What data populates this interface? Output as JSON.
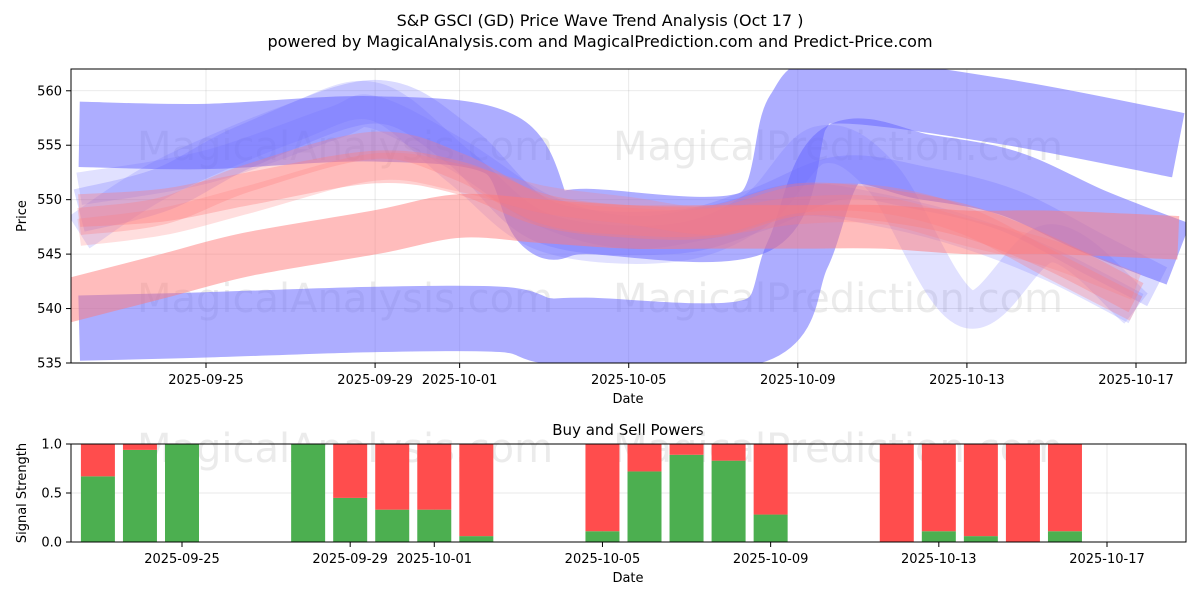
{
  "header": {
    "title_line1": "S&P GSCI (GD) Price Wave Trend Analysis (Oct 17 )",
    "title_line2": "powered by MagicalAnalysis.com and MagicalPrediction.com and Predict-Price.com"
  },
  "watermarks": {
    "left": "MagicalAnalysis.com",
    "right": "MagicalPrediction.com"
  },
  "colors": {
    "buy_band": "#6a6aff",
    "sell_band": "#ff7a7a",
    "buy_bar": "#4caf50",
    "sell_bar": "#ff4d4d"
  },
  "chart_data": [
    {
      "type": "area",
      "title": "",
      "xlabel": "Date",
      "ylabel": "Price",
      "ylim": [
        535,
        562
      ],
      "yticks": [
        535,
        540,
        545,
        550,
        555,
        560
      ],
      "xticks": [
        "2025-09-25",
        "2025-09-29",
        "2025-10-01",
        "2025-10-05",
        "2025-10-09",
        "2025-10-13",
        "2025-10-17"
      ],
      "xtick_days": [
        5,
        9,
        11,
        15,
        19,
        23,
        27
      ],
      "grid": true,
      "x_unit": "days since 2025-09-20",
      "series": [
        {
          "name": "blue-wave-upper",
          "color": "blue",
          "opacity": 0.55,
          "width": 6,
          "x": [
            2,
            5,
            9,
            12,
            13,
            14,
            18,
            19,
            20,
            24,
            28
          ],
          "y": [
            556,
            555.8,
            556.5,
            555,
            548,
            548,
            548,
            558,
            560,
            558,
            555
          ]
        },
        {
          "name": "blue-wave-lower",
          "color": "blue",
          "opacity": 0.55,
          "width": 6,
          "x": [
            2,
            5,
            9,
            12,
            13,
            14,
            18,
            19,
            20,
            22,
            24,
            26,
            28
          ],
          "y": [
            538.2,
            538.5,
            539,
            539,
            538,
            538,
            538,
            545,
            554,
            553,
            551.5,
            548,
            545
          ]
        },
        {
          "name": "blue-wave-3",
          "color": "blue",
          "opacity": 0.25,
          "width": 4,
          "x": [
            2,
            4,
            6,
            9,
            11,
            13,
            16,
            18,
            20,
            22,
            24,
            26,
            27.5
          ],
          "y": [
            549,
            551,
            555,
            559,
            555,
            548,
            547,
            549,
            552,
            551,
            549,
            545,
            542
          ]
        },
        {
          "name": "blue-wave-4",
          "color": "blue",
          "opacity": 0.2,
          "width": 3.5,
          "x": [
            2,
            4,
            7,
            9,
            11,
            13,
            16,
            18,
            19.5,
            21,
            23,
            25,
            27
          ],
          "y": [
            547,
            552,
            557,
            559,
            553,
            547,
            546,
            549,
            555,
            552,
            540,
            546,
            540
          ]
        },
        {
          "name": "blue-wave-5",
          "color": "blue",
          "opacity": 0.2,
          "width": 3,
          "x": [
            2,
            5,
            8,
            9,
            11,
            13,
            15,
            17,
            19,
            21,
            23,
            25,
            27
          ],
          "y": [
            551,
            553,
            557,
            558,
            554,
            549,
            547,
            548,
            550,
            549,
            547,
            544,
            540
          ]
        },
        {
          "name": "red-wave-lower",
          "color": "red",
          "opacity": 0.5,
          "width": 4,
          "x": [
            1.5,
            4,
            6,
            9,
            11,
            13,
            15,
            17,
            19,
            21,
            23,
            25,
            28
          ],
          "y": [
            540.5,
            543,
            545,
            547,
            548.5,
            548,
            547.5,
            547.5,
            547.5,
            547.5,
            547,
            547,
            546.5
          ]
        },
        {
          "name": "red-wave-2",
          "color": "red",
          "opacity": 0.35,
          "width": 3,
          "x": [
            2,
            4,
            6,
            9,
            11,
            13,
            15,
            17,
            19,
            21,
            23,
            25,
            27
          ],
          "y": [
            549,
            549.5,
            551,
            553,
            552,
            549,
            548,
            548,
            550,
            549.5,
            548,
            545,
            541
          ]
        },
        {
          "name": "red-wave-3",
          "color": "red",
          "opacity": 0.3,
          "width": 2.5,
          "x": [
            2,
            4,
            6,
            9,
            11,
            13,
            15,
            17,
            19,
            21,
            23,
            25,
            27
          ],
          "y": [
            548,
            549,
            552,
            555,
            553,
            549,
            548,
            548,
            550,
            550,
            548,
            544,
            540
          ]
        },
        {
          "name": "red-wave-4",
          "color": "red",
          "opacity": 0.25,
          "width": 2.5,
          "x": [
            2,
            4,
            6,
            9,
            11,
            13,
            15,
            17,
            19,
            21,
            23,
            25,
            27
          ],
          "y": [
            547,
            548,
            550,
            553,
            552,
            550,
            549,
            548,
            549,
            549,
            547,
            545,
            542
          ]
        }
      ]
    },
    {
      "type": "bar",
      "title": "Buy and Sell Powers",
      "xlabel": "Date",
      "ylabel": "Signal Strength",
      "ylim": [
        0,
        1
      ],
      "yticks": [
        0.0,
        0.5,
        1.0
      ],
      "ytick_labels": [
        "0.0",
        "0.5",
        "1.0"
      ],
      "xticks": [
        "2025-09-25",
        "2025-09-29",
        "2025-10-01",
        "2025-10-05",
        "2025-10-09",
        "2025-10-13",
        "2025-10-17"
      ],
      "xtick_days": [
        5,
        9,
        11,
        15,
        19,
        23,
        27
      ],
      "x_unit": "days since 2025-09-20",
      "bars": [
        {
          "day": 3,
          "buy": 0.67,
          "sell": 0.33
        },
        {
          "day": 4,
          "buy": 0.94,
          "sell": 0.06
        },
        {
          "day": 5,
          "buy": 1.0,
          "sell": 0.0
        },
        {
          "day": 8,
          "buy": 1.0,
          "sell": 0.0
        },
        {
          "day": 9,
          "buy": 0.45,
          "sell": 0.55
        },
        {
          "day": 10,
          "buy": 0.33,
          "sell": 0.67
        },
        {
          "day": 11,
          "buy": 0.33,
          "sell": 0.67
        },
        {
          "day": 12,
          "buy": 0.06,
          "sell": 0.94
        },
        {
          "day": 15,
          "buy": 0.11,
          "sell": 0.89
        },
        {
          "day": 16,
          "buy": 0.72,
          "sell": 0.28
        },
        {
          "day": 17,
          "buy": 0.89,
          "sell": 0.11
        },
        {
          "day": 18,
          "buy": 0.83,
          "sell": 0.17
        },
        {
          "day": 19,
          "buy": 0.28,
          "sell": 0.72
        },
        {
          "day": 22,
          "buy": 0.0,
          "sell": 1.0
        },
        {
          "day": 23,
          "buy": 0.11,
          "sell": 0.89
        },
        {
          "day": 24,
          "buy": 0.06,
          "sell": 0.94
        },
        {
          "day": 25,
          "buy": 0.0,
          "sell": 1.0
        },
        {
          "day": 26,
          "buy": 0.11,
          "sell": 0.89
        }
      ]
    }
  ]
}
